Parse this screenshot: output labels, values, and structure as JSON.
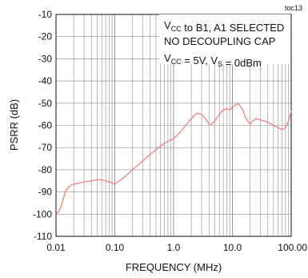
{
  "figure_id": "toc13",
  "chart_data": {
    "type": "line",
    "xlabel": "FREQUENCY (MHz)",
    "ylabel": "PSRR (dB)",
    "xscale": "log",
    "xlim": [
      0.01,
      100
    ],
    "ylim": [
      -110,
      -10
    ],
    "xticks": [
      "0.01",
      "0.10",
      "1.0",
      "10.0",
      "100.00"
    ],
    "yticks": [
      "-10",
      "-20",
      "-30",
      "-40",
      "-50",
      "-60",
      "-70",
      "-80",
      "-90",
      "-100",
      "-110"
    ],
    "grid": true,
    "line_color": "#f08080",
    "annotations": [
      {
        "pre": "V",
        "sub": "CC",
        "post": " to B1, A1 SELECTED"
      },
      {
        "pre": "NO DECOUPLING CAP",
        "sub": "",
        "post": ""
      },
      {
        "pre": "V",
        "sub": "CC",
        "post": " = 5V, V",
        "sub2": "S",
        "post2": " = 0dBm"
      }
    ],
    "series": [
      {
        "x": [
          0.01,
          0.011,
          0.012,
          0.013,
          0.014,
          0.015,
          0.016,
          0.018,
          0.02,
          0.025,
          0.03,
          0.04,
          0.05,
          0.06,
          0.07,
          0.08,
          0.09,
          0.1,
          0.12,
          0.15,
          0.2,
          0.3,
          0.4,
          0.5,
          0.7,
          0.9,
          1.0,
          1.3,
          1.6,
          2.0,
          2.5,
          3.0,
          3.5,
          4.0,
          4.5,
          5.0,
          6.0,
          7.0,
          8.0,
          9.0,
          10.0,
          11.0,
          12.0,
          13.0,
          15.0,
          17.0,
          20.0,
          22.0,
          25.0,
          30.0,
          35.0,
          40.0,
          50.0,
          60.0,
          70.0,
          80.0,
          90.0,
          100.0
        ],
        "values": [
          -100,
          -99,
          -97,
          -94,
          -91,
          -89,
          -88,
          -87,
          -86.5,
          -86,
          -85.5,
          -85,
          -84.5,
          -84.5,
          -85,
          -85.5,
          -86,
          -86.5,
          -85,
          -83,
          -80,
          -76,
          -73,
          -71,
          -68,
          -66.5,
          -66,
          -63,
          -60,
          -57,
          -54.5,
          -55,
          -57,
          -59.5,
          -59.5,
          -58,
          -55,
          -53,
          -52.5,
          -53,
          -52,
          -51,
          -50.3,
          -50.5,
          -53,
          -57,
          -59.5,
          -58,
          -57,
          -57.5,
          -58,
          -58.5,
          -60,
          -61,
          -62,
          -61,
          -58,
          -53.5
        ]
      }
    ]
  }
}
